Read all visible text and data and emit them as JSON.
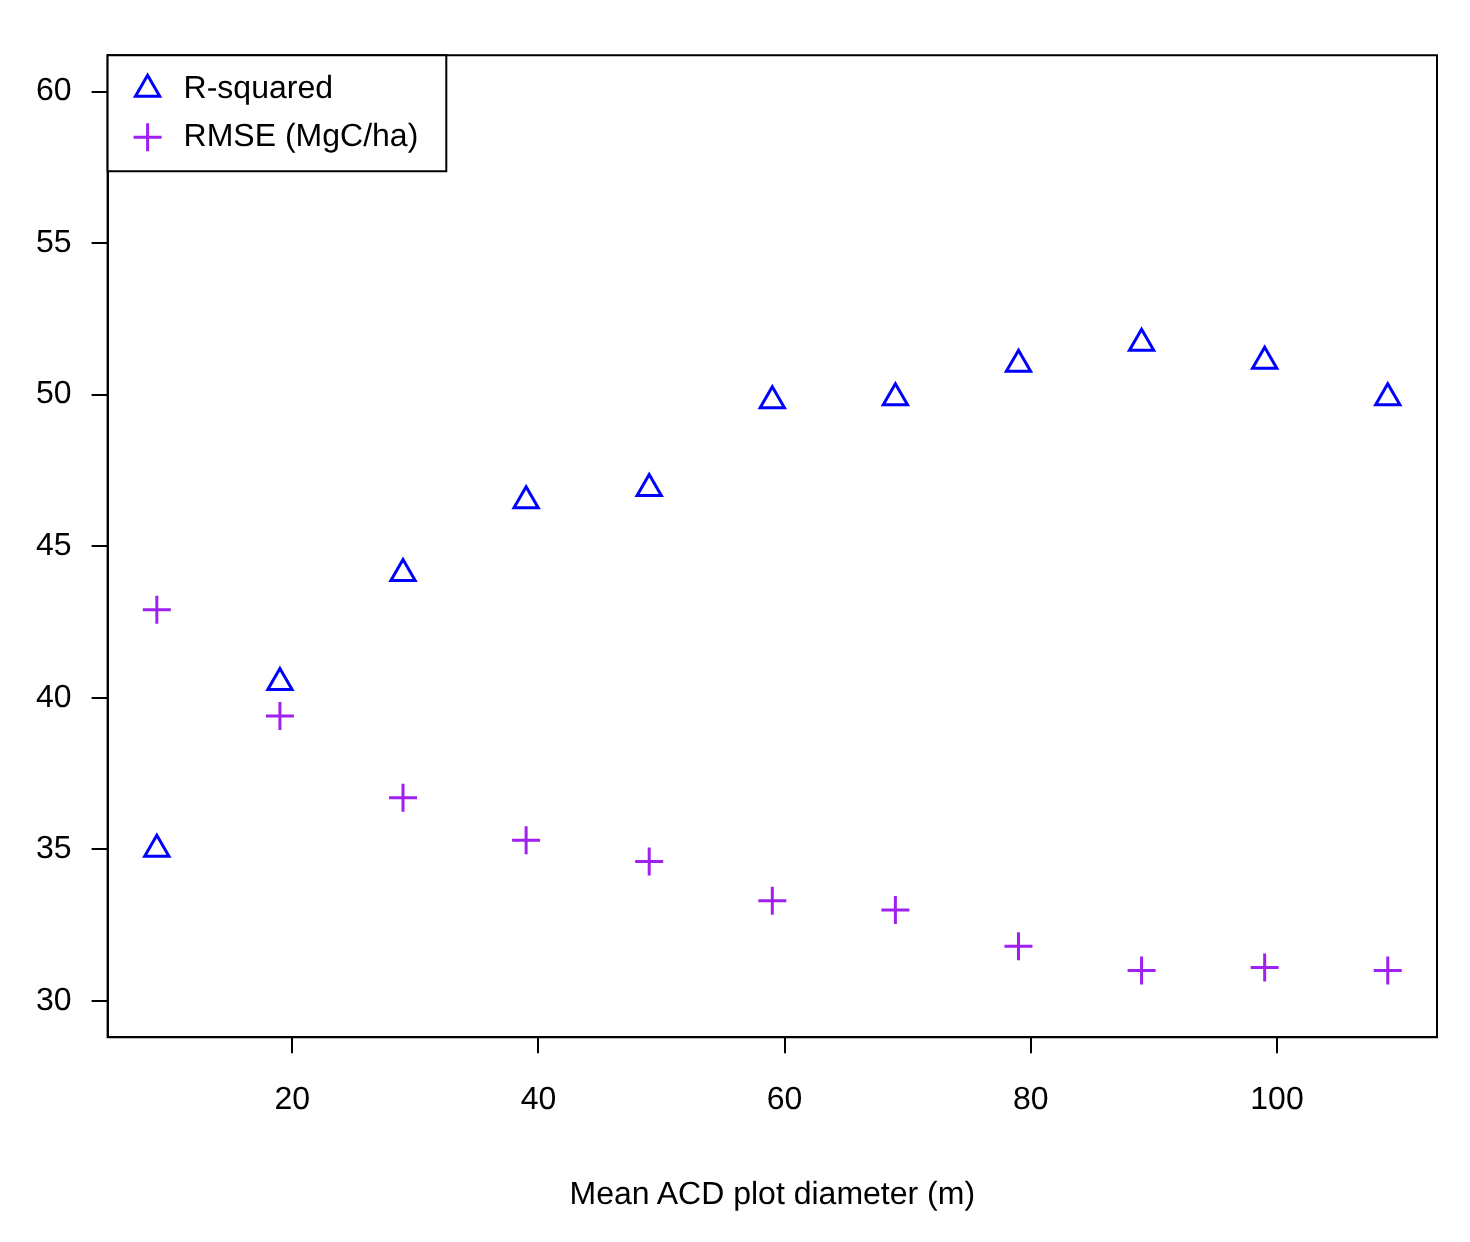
{
  "chart_data": {
    "type": "scatter",
    "xlabel": "Mean ACD plot diameter (m)",
    "x": [
      9,
      19,
      29,
      39,
      49,
      59,
      69,
      79,
      89,
      99,
      109
    ],
    "series": [
      {
        "name": "R-squared",
        "color": "#0000ff",
        "marker": "triangle",
        "values": [
          35.0,
          40.5,
          44.1,
          46.5,
          46.9,
          49.8,
          49.9,
          51.0,
          51.7,
          51.1,
          49.9
        ]
      },
      {
        "name": "RMSE (MgC/ha)",
        "color": "#a020f0",
        "marker": "cross",
        "values": [
          42.9,
          39.4,
          36.7,
          35.3,
          34.6,
          33.3,
          33.0,
          31.8,
          31.0,
          31.1,
          31.0
        ]
      }
    ],
    "xlim": [
      5,
      113
    ],
    "xticks": [
      20,
      40,
      60,
      80,
      100
    ],
    "ylim": [
      28.8,
      61.2
    ],
    "yticks": [
      30,
      35,
      40,
      45,
      50,
      55,
      60
    ],
    "grid": false,
    "legend": "top left"
  }
}
